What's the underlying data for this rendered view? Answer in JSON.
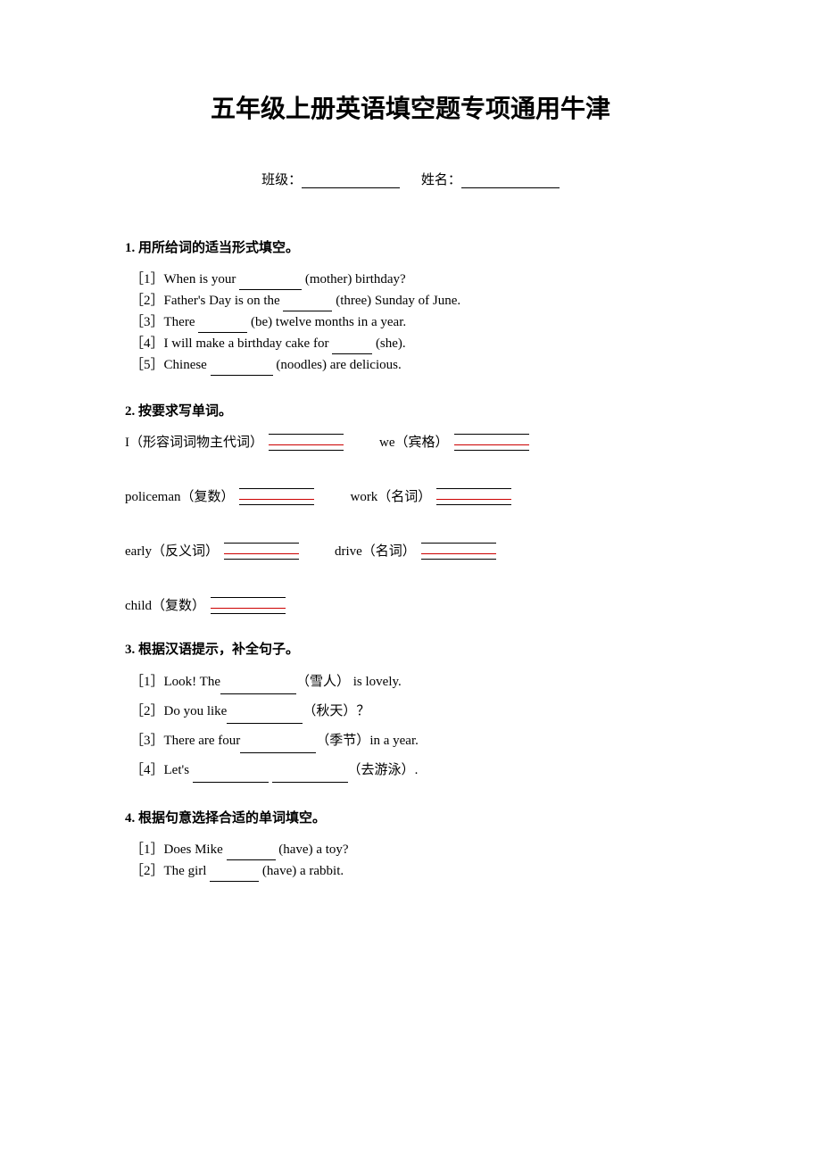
{
  "title": "五年级上册英语填空题专项通用牛津",
  "info": {
    "class_label": "班级：",
    "name_label": "姓名："
  },
  "section1": {
    "heading": "1. 用所给词的适当形式填空。",
    "items": [
      {
        "num": "［1］",
        "pre": "When is your ",
        "hint": "(mother) birthday?"
      },
      {
        "num": "［2］",
        "pre": "Father's Day is on the ",
        "hint": "(three) Sunday of June."
      },
      {
        "num": "［3］",
        "pre": "There ",
        "hint": "(be) twelve months in a year."
      },
      {
        "num": "［4］",
        "pre": "I will make a birthday cake for ",
        "hint": "(she)."
      },
      {
        "num": "［5］",
        "pre": "Chinese ",
        "hint": "(noodles) are delicious."
      }
    ]
  },
  "section2": {
    "heading": "2. 按要求写单词。",
    "rows": [
      {
        "left_label": "I（形容词词物主代词）",
        "right_label": "we（宾格）"
      },
      {
        "left_label": "policeman（复数）",
        "right_label": "work（名词）"
      },
      {
        "left_label": "early（反义词）",
        "right_label": "drive（名词）"
      }
    ],
    "last_row": {
      "label": "child（复数）"
    },
    "colors": {
      "black": "#000000",
      "red": "#cc0000"
    }
  },
  "section3": {
    "heading": "3. 根据汉语提示，补全句子。",
    "items": [
      {
        "num": "［1］",
        "pre": "Look! The",
        "hint": "（雪人）",
        "post": " is lovely."
      },
      {
        "num": "［2］",
        "pre": "Do you like",
        "hint": "（秋天）",
        "post": "？"
      },
      {
        "num": "［3］",
        "pre": "There are four",
        "hint": "（季节）",
        "post": "in a year."
      },
      {
        "num": "［4］",
        "pre": "Let's ",
        "hint": "（去游泳）",
        "post": "."
      }
    ]
  },
  "section4": {
    "heading": "4. 根据句意选择合适的单词填空。",
    "items": [
      {
        "num": "［1］",
        "pre": "Does Mike ",
        "hint": "(have) a toy?"
      },
      {
        "num": "［2］",
        "pre": "The girl ",
        "hint": "(have) a rabbit."
      }
    ]
  }
}
